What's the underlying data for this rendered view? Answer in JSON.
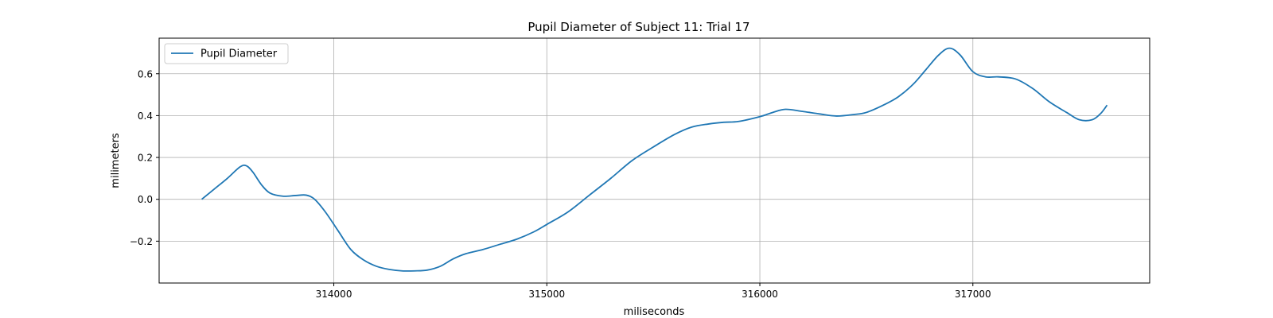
{
  "chart_data": {
    "type": "line",
    "title": "Pupil Diameter of Subject 11: Trial 17",
    "xlabel": "miliseconds",
    "ylabel": "milimeters",
    "xlim": [
      313180,
      317830
    ],
    "ylim": [
      -0.4,
      0.77
    ],
    "xticks": [
      314000,
      315000,
      316000,
      317000
    ],
    "yticks": [
      -0.2,
      0.0,
      0.2,
      0.4,
      0.6
    ],
    "ytick_labels": [
      "−0.2",
      "0.0",
      "0.2",
      "0.4",
      "0.6"
    ],
    "grid": true,
    "legend": {
      "position": "top-left",
      "entries": [
        "Pupil Diameter"
      ]
    },
    "series": [
      {
        "name": "Pupil Diameter",
        "color": "#1f77b4",
        "x": [
          313380,
          313440,
          313500,
          313560,
          313590,
          313620,
          313660,
          313700,
          313760,
          313820,
          313870,
          313910,
          313960,
          314020,
          314080,
          314140,
          314200,
          314260,
          314320,
          314380,
          314440,
          314500,
          314560,
          314620,
          314700,
          314780,
          314860,
          314940,
          315000,
          315100,
          315200,
          315300,
          315400,
          315500,
          315600,
          315680,
          315760,
          315830,
          315900,
          316000,
          316060,
          316120,
          316200,
          316280,
          316360,
          316440,
          316500,
          316580,
          316650,
          316720,
          316780,
          316840,
          316890,
          316940,
          317000,
          317060,
          317120,
          317200,
          317280,
          317360,
          317440,
          317500,
          317560,
          317600,
          317630
        ],
        "y": [
          0.0,
          0.05,
          0.1,
          0.155,
          0.16,
          0.13,
          0.07,
          0.03,
          0.015,
          0.018,
          0.02,
          0.0,
          -0.06,
          -0.15,
          -0.24,
          -0.29,
          -0.32,
          -0.335,
          -0.342,
          -0.342,
          -0.338,
          -0.32,
          -0.285,
          -0.26,
          -0.24,
          -0.215,
          -0.19,
          -0.155,
          -0.12,
          -0.06,
          0.02,
          0.1,
          0.185,
          0.25,
          0.31,
          0.345,
          0.36,
          0.368,
          0.372,
          0.395,
          0.415,
          0.43,
          0.42,
          0.408,
          0.398,
          0.405,
          0.415,
          0.45,
          0.49,
          0.55,
          0.62,
          0.69,
          0.722,
          0.69,
          0.61,
          0.585,
          0.585,
          0.575,
          0.53,
          0.465,
          0.415,
          0.38,
          0.38,
          0.41,
          0.45
        ]
      }
    ]
  }
}
